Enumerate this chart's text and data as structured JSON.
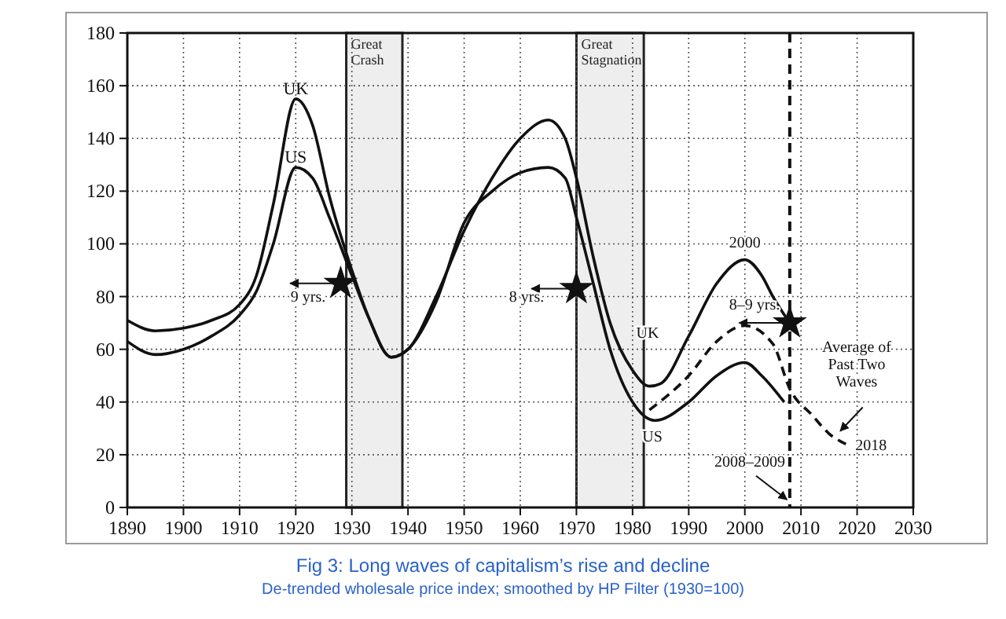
{
  "chart_data": {
    "type": "line",
    "title": "Fig 3: Long waves of capitalism’s rise and decline",
    "subtitle": "De-trended wholesale price index; smoothed by HP Filter (1930=100)",
    "xlim": [
      1890,
      2030
    ],
    "xticks": [
      1890,
      1900,
      1910,
      1920,
      1930,
      1940,
      1950,
      1960,
      1970,
      1980,
      1990,
      2000,
      2010,
      2020,
      2030
    ],
    "ylim": [
      0,
      180
    ],
    "yticks": [
      0,
      20,
      40,
      60,
      80,
      100,
      120,
      140,
      160,
      180
    ],
    "grid": true,
    "series": [
      {
        "name": "UK",
        "color": "#111111",
        "line_style": "solid",
        "x": [
          1890,
          1895,
          1900,
          1905,
          1910,
          1913,
          1916,
          1920,
          1923,
          1926,
          1930,
          1933,
          1937,
          1940,
          1945,
          1950,
          1955,
          1960,
          1965,
          1968,
          1970,
          1973,
          1976,
          1980,
          1983,
          1985,
          1990,
          1995,
          2000,
          2003,
          2005,
          2008
        ],
        "values": [
          71,
          67,
          68,
          71,
          77,
          88,
          115,
          155,
          145,
          118,
          90,
          72,
          57,
          60,
          80,
          105,
          125,
          140,
          147,
          140,
          125,
          95,
          70,
          52,
          46,
          47,
          65,
          85,
          94,
          88,
          80,
          70
        ]
      },
      {
        "name": "US",
        "color": "#111111",
        "line_style": "solid",
        "x": [
          1890,
          1895,
          1900,
          1905,
          1910,
          1913,
          1916,
          1920,
          1923,
          1926,
          1930,
          1933,
          1937,
          1940,
          1945,
          1950,
          1955,
          1960,
          1965,
          1968,
          1970,
          1973,
          1976,
          1980,
          1984,
          1990,
          1995,
          2000,
          2003,
          2007
        ],
        "values": [
          63,
          58,
          60,
          65,
          73,
          82,
          100,
          129,
          125,
          110,
          88,
          72,
          57,
          60,
          78,
          108,
          120,
          127,
          129,
          125,
          110,
          85,
          60,
          40,
          33,
          40,
          50,
          55,
          50,
          40
        ]
      },
      {
        "type": "line",
        "color": "#111111",
        "line_style": "dashed",
        "x": [
          1983,
          1990,
          1995,
          2000,
          2005,
          2008,
          2012,
          2015,
          2018
        ],
        "values": [
          37,
          50,
          63,
          69,
          62,
          45,
          35,
          28,
          24
        ]
      },
      {
        "type": "scatter",
        "marker": "star",
        "color": "#111111",
        "x": [
          1928,
          1970,
          2008
        ],
        "values": [
          85,
          83,
          70
        ]
      }
    ],
    "ref_lines": [
      {
        "axis": "x",
        "value": 2008,
        "line_style": "dashed",
        "color": "#111111"
      }
    ],
    "bands": [
      {
        "axis": "x",
        "from": 1929,
        "to": 1939,
        "label": "Great Crash",
        "color": "#eeeeee"
      },
      {
        "axis": "x",
        "from": 1970,
        "to": 1982,
        "label": "Great Stagnation",
        "color": "#eeeeee"
      }
    ],
    "annotations": [
      "UK",
      "US",
      "9 yrs.",
      "8 yrs.",
      "8–9 yrs.",
      {
        "text": "2000",
        "x": 2000,
        "y": 94
      },
      "Average of Past Two Waves",
      {
        "text": "2018",
        "x": 2018,
        "y": 24
      },
      "2008–2009"
    ]
  }
}
